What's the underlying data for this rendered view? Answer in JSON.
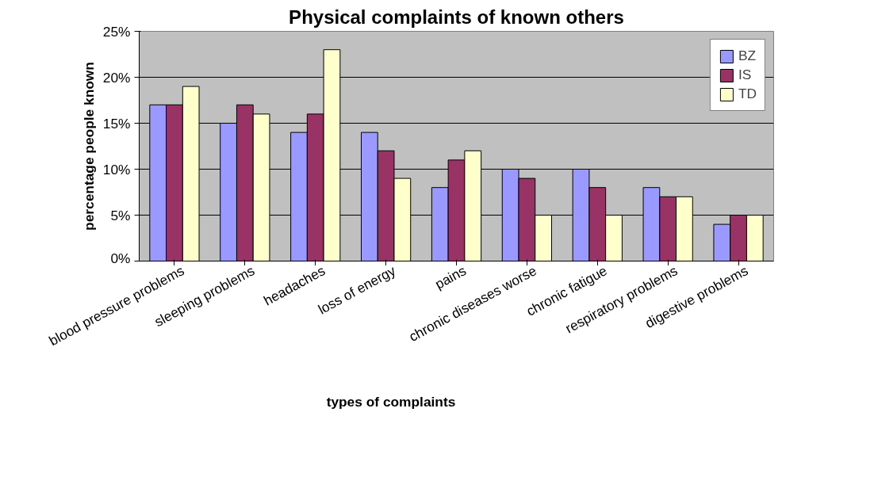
{
  "chart_data": {
    "type": "bar",
    "title": "Physical complaints of known others",
    "xlabel": "types of complaints",
    "ylabel": "percentage people known",
    "categories": [
      "blood pressure problems",
      "sleeping problems",
      "headaches",
      "loss of energy",
      "pains",
      "chronic diseases worse",
      "chronic fatigue",
      "respiratory problems",
      "digestive problems"
    ],
    "series": [
      {
        "name": "BZ",
        "color": "#9999ff",
        "values": [
          17,
          15,
          14,
          14,
          8,
          10,
          10,
          8,
          4
        ]
      },
      {
        "name": "IS",
        "color": "#993366",
        "values": [
          17,
          17,
          16,
          12,
          11,
          9,
          8,
          7,
          5
        ]
      },
      {
        "name": "TD",
        "color": "#ffffcc",
        "values": [
          19,
          16,
          23,
          9,
          12,
          5,
          5,
          7,
          5
        ]
      }
    ],
    "ylim": [
      0,
      25
    ],
    "yticks": [
      {
        "value": 0,
        "label": "0%"
      },
      {
        "value": 5,
        "label": "5%"
      },
      {
        "value": 10,
        "label": "10%"
      },
      {
        "value": 15,
        "label": "15%"
      },
      {
        "value": 20,
        "label": "20%"
      },
      {
        "value": 25,
        "label": "25%"
      }
    ],
    "grid": "y",
    "legend": "top right"
  }
}
